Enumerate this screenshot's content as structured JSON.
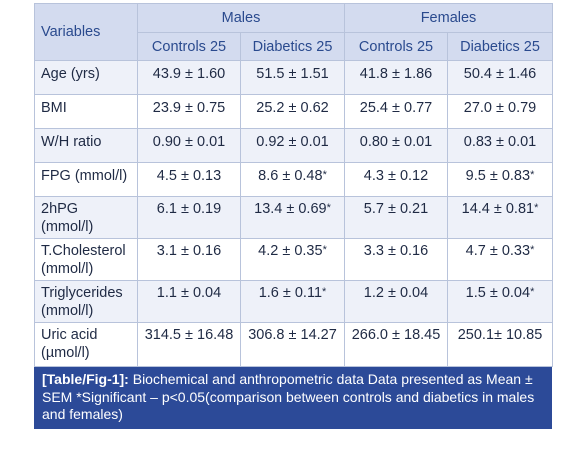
{
  "header": {
    "variables": "Variables",
    "groups": [
      "Males",
      "Females"
    ],
    "subgroups": [
      "Controls 25",
      "Diabetics 25",
      "Controls 25",
      "Diabetics 25"
    ]
  },
  "rows": [
    {
      "label": "Age (yrs)",
      "values": [
        "43.9 ± 1.60",
        "51.5 ± 1.51",
        "41.8  ± 1.86",
        "50.4 ± 1.46"
      ]
    },
    {
      "label": "BMI",
      "values": [
        "23.9 ± 0.75",
        "25.2 ± 0.62",
        "25.4  ± 0.77",
        "27.0 ± 0.79"
      ]
    },
    {
      "label": "W/H ratio",
      "values": [
        "0.90 ± 0.01",
        "0.92 ± 0.01",
        "0.80 ± 0.01",
        "0.83 ± 0.01"
      ]
    },
    {
      "label": "FPG (mmol/l)",
      "values": [
        "4.5 ± 0.13",
        "8.6 ± 0.48*",
        "4.3  ± 0.12",
        "9.5 ± 0.83*"
      ]
    },
    {
      "label": "2hPG (mmol/l)",
      "values": [
        "6.1 ±  0.19",
        "13.4 ± 0.69*",
        "5.7 ± 0.21",
        "14.4 ± 0.81*"
      ]
    },
    {
      "label": "T.Cholesterol (mmol/l)",
      "values": [
        "3.1 ± 0.16",
        "4.2 ± 0.35*",
        "3.3  ± 0.16",
        "4.7 ± 0.33*"
      ]
    },
    {
      "label": "Triglycerides (mmol/l)",
      "values": [
        "1.1 ± 0.04",
        "1.6 ± 0.11*",
        "1.2  ± 0.04",
        "1.5 ± 0.04*"
      ]
    },
    {
      "label": "Uric acid (µmol/l)",
      "values": [
        "314.5 ± 16.48",
        "306.8 ± 14.27",
        "266.0 ± 18.45",
        "250.1± 10.85"
      ]
    }
  ],
  "caption": {
    "label": "[Table/Fig-1]:",
    "text": " Biochemical and anthropometric data Data presented as Mean ± SEM *Significant – p<0.05(comparison between controls and diabetics in males and females)"
  }
}
